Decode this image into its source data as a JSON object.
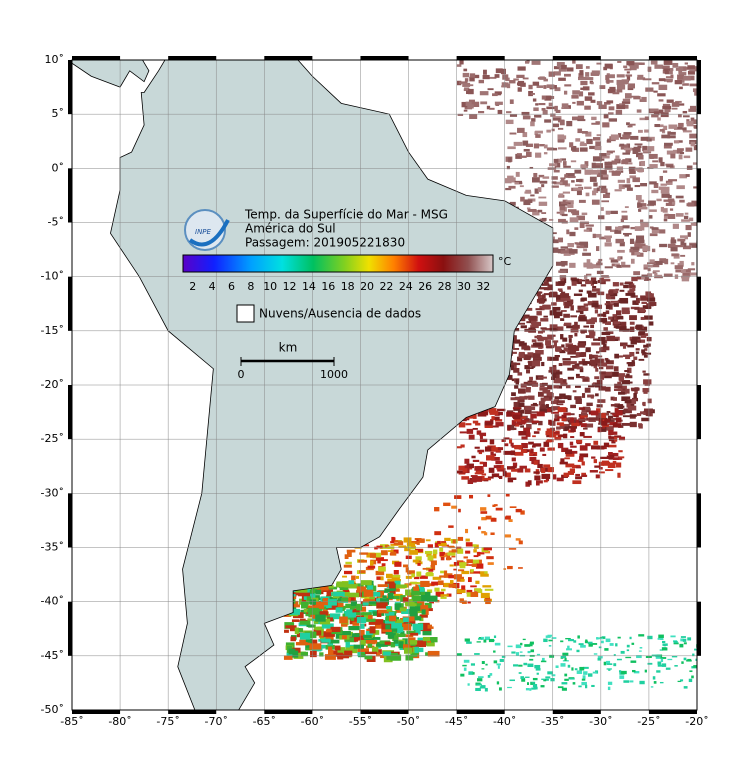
{
  "title": {
    "line1": "Temp. da Superfície do Mar - MSG",
    "line2": "América do Sul",
    "line3": "Passagem: 201905221830"
  },
  "colorbar": {
    "unit": "°C",
    "ticks": [
      "2",
      "4",
      "6",
      "8",
      "10",
      "12",
      "14",
      "16",
      "18",
      "20",
      "22",
      "24",
      "26",
      "28",
      "30",
      "32"
    ]
  },
  "legend": {
    "label": "Nuvens/Ausencia de dados"
  },
  "scale_bar": {
    "unit": "km",
    "ticks": [
      "0",
      "1000"
    ]
  },
  "axes": {
    "x_labels": [
      "-85˚",
      "-80˚",
      "-75˚",
      "-70˚",
      "-65˚",
      "-60˚",
      "-55˚",
      "-50˚",
      "-45˚",
      "-40˚",
      "-35˚",
      "-30˚",
      "-25˚",
      "-20˚"
    ],
    "y_labels": [
      "10˚",
      "5˚",
      "0˚",
      "-5˚",
      "-10˚",
      "-15˚",
      "-20˚",
      "-25˚",
      "-30˚",
      "-35˚",
      "-40˚",
      "-45˚",
      "-50˚"
    ]
  }
}
